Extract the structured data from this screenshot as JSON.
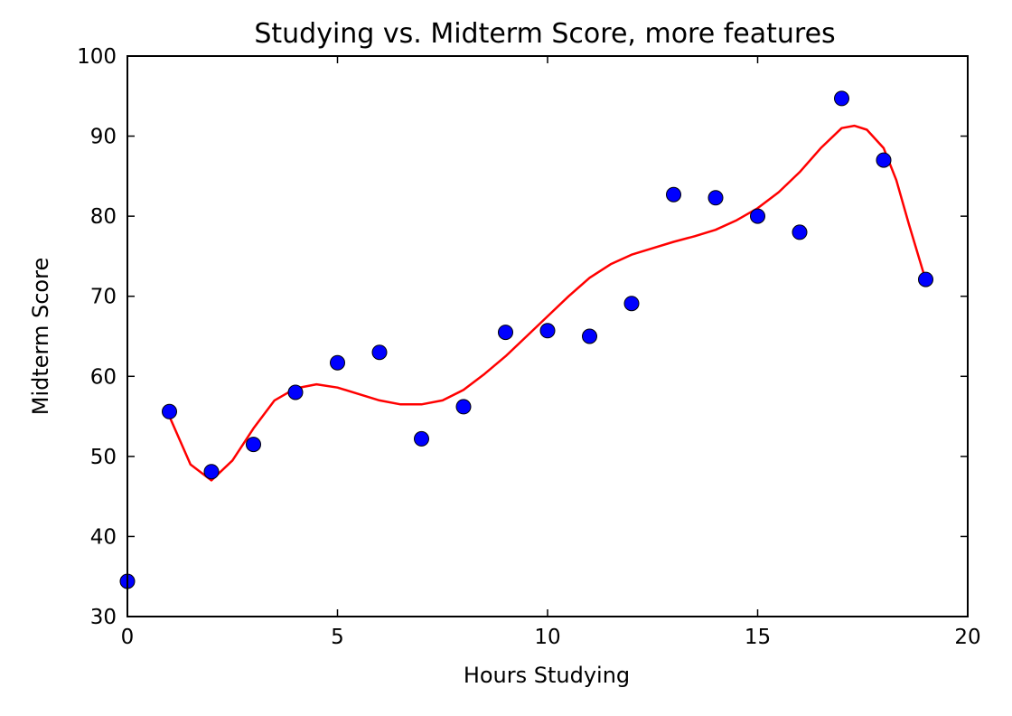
{
  "chart_data": {
    "type": "scatter",
    "title": "Studying vs. Midterm Score, more features",
    "xlabel": "Hours Studying",
    "ylabel": "Midterm Score",
    "xlim": [
      0,
      20
    ],
    "ylim": [
      30,
      100
    ],
    "xticks": [
      0,
      5,
      10,
      15,
      20
    ],
    "yticks": [
      30,
      40,
      50,
      60,
      70,
      80,
      90,
      100
    ],
    "grid": false,
    "legend": "none",
    "series": [
      {
        "kind": "scatter",
        "color": "#0000ff",
        "x": [
          0,
          1,
          2,
          3,
          4,
          5,
          6,
          7,
          8,
          9,
          10,
          11,
          12,
          13,
          14,
          15,
          16,
          17,
          18,
          19
        ],
        "y": [
          34.4,
          55.6,
          48.1,
          51.5,
          58.0,
          61.7,
          63.0,
          52.2,
          56.2,
          65.5,
          65.7,
          65.0,
          69.1,
          82.7,
          82.3,
          80.0,
          78.0,
          94.7,
          87.0,
          72.1
        ]
      },
      {
        "kind": "line",
        "color": "#ff0000",
        "x": [
          1,
          1.5,
          2,
          2.5,
          3,
          3.5,
          4,
          4.5,
          5,
          5.5,
          6,
          6.5,
          7,
          7.5,
          8,
          8.5,
          9,
          9.5,
          10,
          10.5,
          11,
          11.5,
          12,
          12.5,
          13,
          13.5,
          14,
          14.5,
          15,
          15.5,
          16,
          16.5,
          17,
          17.3,
          17.6,
          18,
          18.3,
          18.6,
          19
        ],
        "y": [
          55.0,
          49.0,
          47.0,
          49.5,
          53.5,
          57.0,
          58.5,
          59.0,
          58.6,
          57.8,
          57.0,
          56.5,
          56.5,
          57.0,
          58.3,
          60.3,
          62.5,
          65.0,
          67.5,
          70.0,
          72.3,
          74.0,
          75.2,
          76.0,
          76.8,
          77.5,
          78.3,
          79.5,
          81.0,
          83.0,
          85.5,
          88.5,
          91.0,
          91.3,
          90.8,
          88.5,
          84.5,
          79.0,
          72.0
        ]
      }
    ]
  }
}
